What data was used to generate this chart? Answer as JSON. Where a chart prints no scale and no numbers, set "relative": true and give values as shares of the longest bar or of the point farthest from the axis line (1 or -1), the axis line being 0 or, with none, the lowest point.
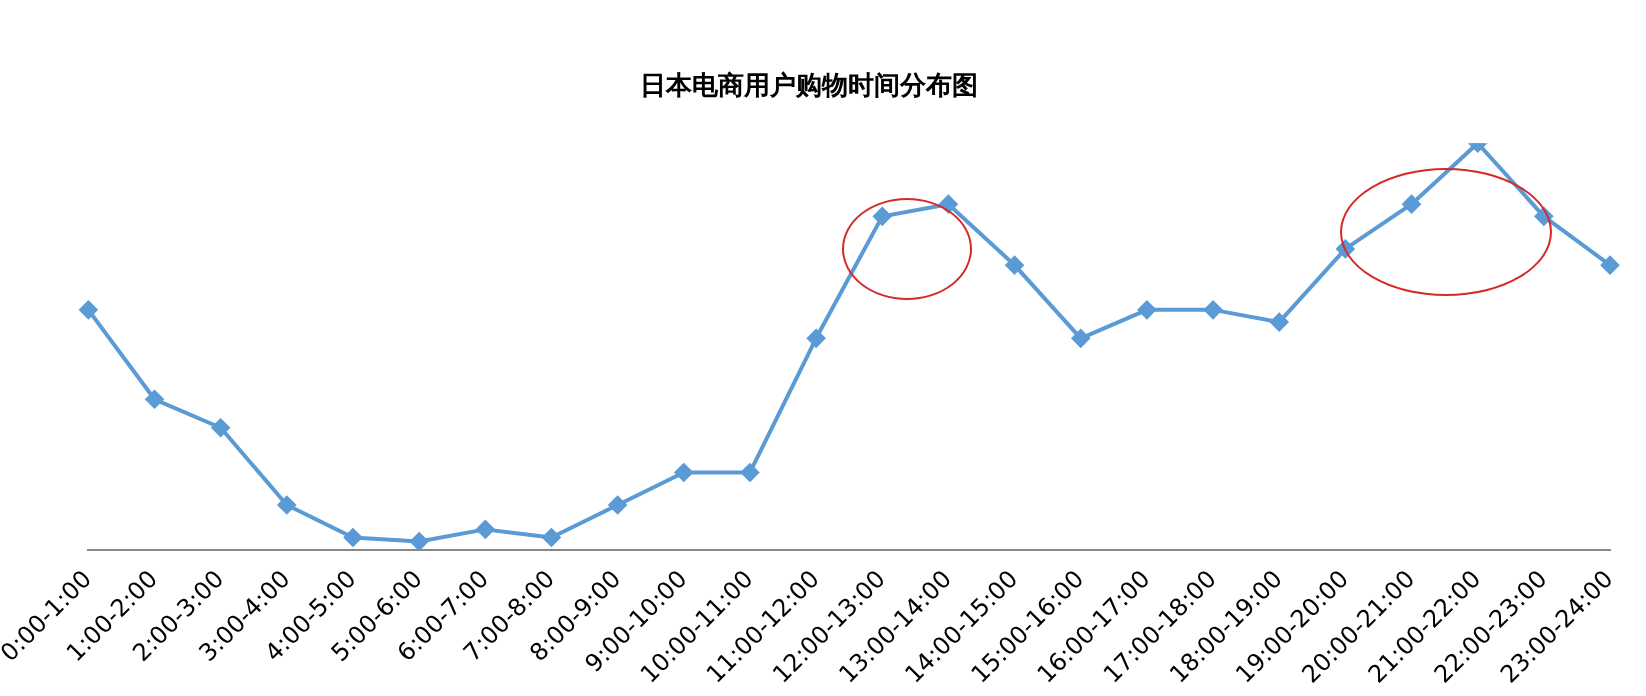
{
  "chart_data": {
    "type": "line",
    "title": "日本电商用户购物时间分布图",
    "relative": true,
    "marker": "diamond",
    "legend": false,
    "grid": false,
    "categories": [
      "0:00-1:00",
      "1:00-2:00",
      "2:00-3:00",
      "3:00-4:00",
      "4:00-5:00",
      "5:00-6:00",
      "6:00-7:00",
      "7:00-8:00",
      "8:00-9:00",
      "9:00-10:00",
      "10:00-11:00",
      "11:00-12:00",
      "12:00-13:00",
      "13:00-14:00",
      "14:00-15:00",
      "15:00-16:00",
      "16:00-17:00",
      "17:00-18:00",
      "18:00-19:00",
      "19:00-20:00",
      "20:00-21:00",
      "21:00-22:00",
      "22:00-23:00",
      "23:00-24:00"
    ],
    "series": [
      {
        "color": "#5b9bd5",
        "values": [
          0.59,
          0.37,
          0.3,
          0.11,
          0.03,
          0.02,
          0.05,
          0.03,
          0.11,
          0.19,
          0.19,
          0.52,
          0.82,
          0.85,
          0.7,
          0.52,
          0.59,
          0.59,
          0.56,
          0.74,
          0.85,
          1,
          0.82,
          0.7
        ]
      }
    ]
  }
}
